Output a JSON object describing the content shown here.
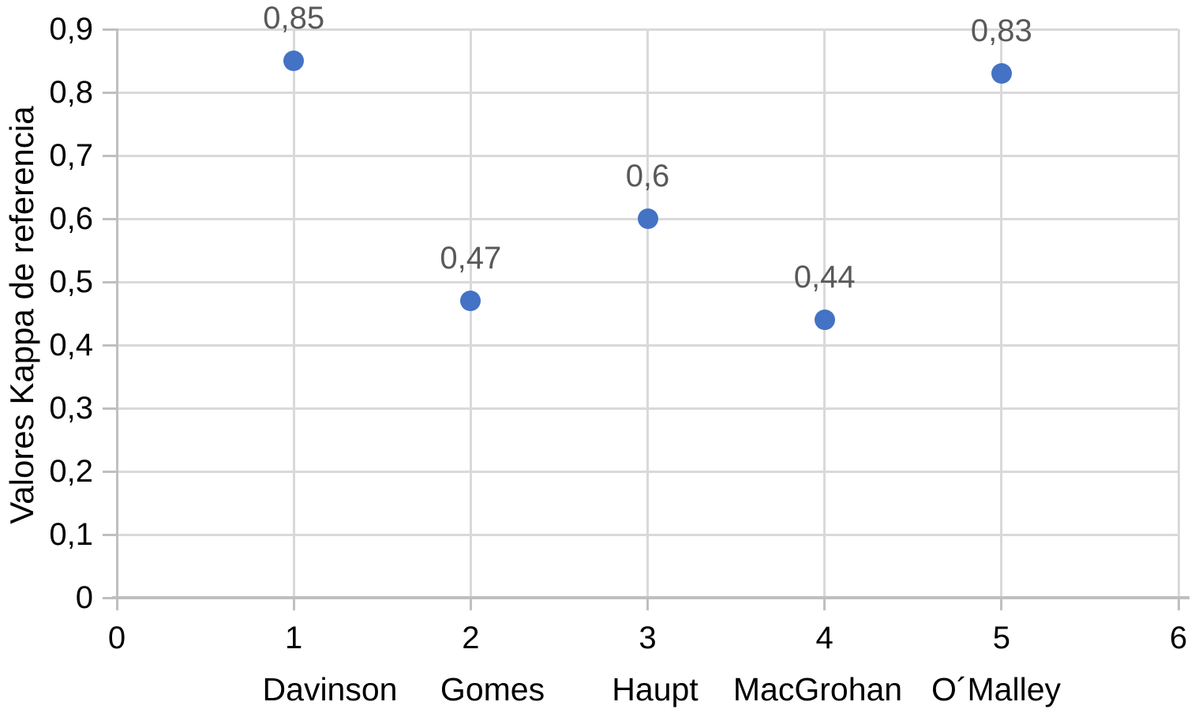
{
  "chart_data": {
    "type": "scatter",
    "title": "",
    "xlabel": "",
    "ylabel": "Valores Kappa de referencia",
    "xlim": [
      0,
      6
    ],
    "ylim": [
      0,
      0.9
    ],
    "grid": true,
    "legend": false,
    "x_ticks": [
      0,
      1,
      2,
      3,
      4,
      5,
      6
    ],
    "x_tick_labels": [
      "0",
      "1",
      "2",
      "3",
      "4",
      "5",
      "6"
    ],
    "y_ticks": [
      0,
      0.1,
      0.2,
      0.3,
      0.4,
      0.5,
      0.6,
      0.7,
      0.8,
      0.9
    ],
    "y_tick_labels": [
      "0",
      "0,1",
      "0,2",
      "0,3",
      "0,4",
      "0,5",
      "0,6",
      "0,7",
      "0,8",
      "0,9"
    ],
    "categories": [
      "Davinson",
      "Gomes",
      "Haupt",
      "MacGrohan",
      "O´Malley"
    ],
    "points": [
      {
        "x": 1,
        "y": 0.85,
        "label": "0,85",
        "category": "Davinson"
      },
      {
        "x": 2,
        "y": 0.47,
        "label": "0,47",
        "category": "Gomes"
      },
      {
        "x": 3,
        "y": 0.6,
        "label": "0,6",
        "category": "Haupt"
      },
      {
        "x": 4,
        "y": 0.44,
        "label": "0,44",
        "category": "MacGrohan"
      },
      {
        "x": 5,
        "y": 0.83,
        "label": "0,83",
        "category": "O´Malley"
      }
    ],
    "colors": {
      "marker": "#4472c4",
      "data_label": "#595959",
      "gridline": "#d9d9d9",
      "axis_line": "#bfbfbf",
      "tick_label": "#000000",
      "background": "#ffffff"
    }
  }
}
